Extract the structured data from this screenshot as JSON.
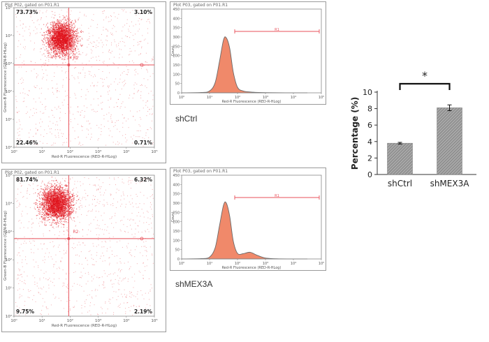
{
  "chart_data": [
    {
      "type": "scatter",
      "id": "scatter-shctrl",
      "title": "Plot P02, gated on P01.R1",
      "xlabel": "Red-R Fluorescence (RED-R-HLog)",
      "ylabel": "Green-B Fluorescence (GRN-B-HLog)",
      "x_ticks": [
        "10⁰",
        "10¹",
        "10²",
        "10³",
        "10⁴",
        "10⁵"
      ],
      "y_ticks": [
        "10⁰",
        "10¹",
        "10²",
        "10³",
        "10⁴",
        "10⁵"
      ],
      "gate_label": "R2",
      "quadrants": {
        "upper_left": "73.73%",
        "upper_right": "3.10%",
        "lower_left": "22.46%",
        "lower_right": "0.71%"
      },
      "xlim": [
        0,
        5
      ],
      "ylim": [
        0,
        5
      ],
      "gate": {
        "x": 1.95,
        "y": 2.95
      },
      "cluster": {
        "center_x": 1.7,
        "center_y": 3.9,
        "spread_x": 0.42,
        "spread_y": 0.48
      }
    },
    {
      "type": "area",
      "id": "histogram-shctrl",
      "title": "Plot P03, gated on P01.R1",
      "xlabel": "Red-R Fluorescence (RED-R-HLog)",
      "ylabel": "Count",
      "x_ticks": [
        "10⁰",
        "10¹",
        "10²",
        "10³",
        "10⁴",
        "10⁵"
      ],
      "y_ticks": [
        "0",
        "50",
        "100",
        "150",
        "200",
        "250",
        "300",
        "350",
        "400",
        "450"
      ],
      "xlim": [
        0,
        5
      ],
      "ylim": [
        0,
        450
      ],
      "region_label": "R1",
      "region_range": [
        1.9,
        5.0
      ],
      "region_level": 330,
      "peak": {
        "x": 1.55,
        "y": 295
      },
      "curve": [
        [
          0,
          0
        ],
        [
          0.7,
          2
        ],
        [
          1.0,
          10
        ],
        [
          1.2,
          55
        ],
        [
          1.35,
          165
        ],
        [
          1.5,
          285
        ],
        [
          1.6,
          295
        ],
        [
          1.72,
          240
        ],
        [
          1.85,
          110
        ],
        [
          2.0,
          30
        ],
        [
          2.2,
          10
        ],
        [
          2.5,
          4
        ],
        [
          3.0,
          1
        ],
        [
          4.5,
          0
        ]
      ]
    },
    {
      "type": "scatter",
      "id": "scatter-shmex3a",
      "title": "Plot P02, gated on P01.R1",
      "xlabel": "Red-R Fluorescence (RED-R-HLog)",
      "ylabel": "Green-B Fluorescence (GRN-B-HLog)",
      "x_ticks": [
        "10⁰",
        "10¹",
        "10²",
        "10³",
        "10⁴",
        "10⁵"
      ],
      "y_ticks": [
        "10⁰",
        "10¹",
        "10²",
        "10³",
        "10⁴",
        "10⁵"
      ],
      "gate_label": "R2",
      "quadrants": {
        "upper_left": "81.74%",
        "upper_right": "6.32%",
        "lower_left": "9.75%",
        "lower_right": "2.19%"
      },
      "xlim": [
        0,
        5
      ],
      "ylim": [
        0,
        5
      ],
      "gate": {
        "x": 1.95,
        "y": 2.75
      },
      "cluster": {
        "center_x": 1.5,
        "center_y": 4.0,
        "spread_x": 0.45,
        "spread_y": 0.5
      }
    },
    {
      "type": "area",
      "id": "histogram-shmex3a",
      "title": "Plot P03, gated on P01.R1",
      "xlabel": "Red-R Fluorescence (RED-R-HLog)",
      "ylabel": "Count",
      "x_ticks": [
        "10⁰",
        "10¹",
        "10²",
        "10³",
        "10⁴",
        "10⁵"
      ],
      "y_ticks": [
        "0",
        "50",
        "100",
        "150",
        "200",
        "250",
        "300",
        "350",
        "400",
        "450"
      ],
      "xlim": [
        0,
        5
      ],
      "ylim": [
        0,
        450
      ],
      "region_label": "R1",
      "region_range": [
        1.9,
        5.0
      ],
      "region_level": 330,
      "peak": {
        "x": 1.6,
        "y": 300
      },
      "curve": [
        [
          0,
          0
        ],
        [
          0.7,
          2
        ],
        [
          1.0,
          10
        ],
        [
          1.2,
          60
        ],
        [
          1.35,
          175
        ],
        [
          1.5,
          290
        ],
        [
          1.6,
          300
        ],
        [
          1.72,
          230
        ],
        [
          1.85,
          95
        ],
        [
          2.0,
          30
        ],
        [
          2.2,
          28
        ],
        [
          2.45,
          36
        ],
        [
          2.7,
          20
        ],
        [
          3.0,
          5
        ],
        [
          3.4,
          1
        ],
        [
          4.5,
          0
        ]
      ]
    },
    {
      "type": "bar",
      "id": "percentage-bar",
      "categories": [
        "shCtrl",
        "shMEX3A"
      ],
      "values": [
        3.8,
        8.1
      ],
      "errors": [
        0.1,
        0.35
      ],
      "ylabel": "Percentage (%)",
      "y_ticks": [
        "0",
        "2",
        "4",
        "6",
        "8",
        "10"
      ],
      "ylim": [
        0,
        10
      ],
      "significance": "*"
    }
  ],
  "captions": {
    "shctrl": "shCtrl",
    "shmex3a": "shMEX3A"
  },
  "colors": {
    "dot": "#e0101a",
    "gate_line": "#e8505a",
    "hist_fill": "#f0896a",
    "hist_stroke": "#6a6a6a",
    "bar_fill": "#8c8c8c"
  }
}
